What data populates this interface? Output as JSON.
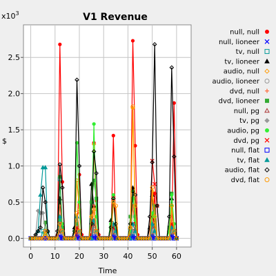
{
  "chart_data": {
    "type": "line",
    "title": "V1 Revenue",
    "xlabel": "Time",
    "ylabel": "$",
    "y_multiplier": "x10",
    "y_multiplier_exp": "3",
    "xlim": [
      -3,
      66
    ],
    "ylim": [
      -0.12,
      2.95
    ],
    "xticks": [
      0,
      10,
      20,
      30,
      40,
      50,
      60
    ],
    "yticks": [
      0.0,
      0.5,
      1.0,
      1.5,
      2.0,
      2.5
    ],
    "ytick_labels": [
      "0.0",
      "0.5",
      "1.0",
      "1.5",
      "2.0",
      "2.5"
    ],
    "grid": true,
    "legend_position": "right",
    "x": [
      0,
      1,
      2,
      3,
      4,
      5,
      6,
      7,
      8,
      9,
      10,
      11,
      12,
      13,
      14,
      15,
      16,
      17,
      18,
      19,
      20,
      21,
      22,
      23,
      24,
      25,
      26,
      27,
      28,
      29,
      30,
      31,
      32,
      33,
      34,
      35,
      36,
      37,
      38,
      39,
      40,
      41,
      42,
      43,
      44,
      45,
      46,
      47,
      48,
      49,
      50,
      51,
      52,
      53,
      54,
      55,
      56,
      57,
      58,
      59,
      60
    ],
    "series": [
      {
        "name": "null, null",
        "color": "#ff0000",
        "marker": "circle-filled",
        "values": [
          0,
          0,
          0,
          0,
          0,
          0,
          0,
          0,
          0,
          0,
          0,
          0.05,
          2.68,
          0.78,
          0,
          0,
          0,
          0,
          0,
          0.05,
          0.88,
          0.05,
          0,
          0,
          0,
          0.05,
          1.32,
          0.52,
          0.05,
          0,
          0,
          0,
          0,
          0,
          1.42,
          0.05,
          0,
          0,
          0,
          0,
          0,
          0.05,
          2.73,
          1.28,
          0.05,
          0,
          0,
          0,
          0,
          0,
          0.05,
          0.62,
          0,
          0,
          0,
          0,
          0,
          0,
          0.05,
          1.87,
          0
        ]
      },
      {
        "name": "null, lioneer",
        "color": "#0000ff",
        "marker": "x",
        "values": [
          0,
          0,
          0,
          0,
          0,
          0,
          0,
          0,
          0,
          0,
          0,
          0,
          0.03,
          0,
          0,
          0,
          0,
          0,
          0,
          0,
          0.03,
          0,
          0,
          0,
          0,
          0,
          0.02,
          0,
          0,
          0,
          0,
          0,
          0,
          0,
          0.03,
          0,
          0,
          0,
          0,
          0,
          0,
          0,
          0.03,
          0,
          0,
          0,
          0,
          0,
          0,
          0,
          0.02,
          0,
          0,
          0,
          0,
          0,
          0,
          0,
          0.03,
          0,
          0
        ]
      },
      {
        "name": "tv, null",
        "color": "#009999",
        "marker": "square-open",
        "values": [
          0,
          0,
          0,
          0,
          0,
          0.1,
          0.08,
          0,
          0,
          0,
          0,
          0,
          0.82,
          0.08,
          0,
          0,
          0,
          0,
          0,
          0.12,
          0.08,
          0,
          0,
          0,
          0,
          0,
          0.12,
          0.08,
          0,
          0,
          0,
          0,
          0,
          0,
          0.08,
          0,
          0,
          0,
          0,
          0,
          0,
          0,
          0.06,
          0,
          0,
          0,
          0,
          0,
          0,
          0,
          0.05,
          0,
          0,
          0,
          0,
          0,
          0,
          0,
          0.08,
          0,
          0
        ]
      },
      {
        "name": "tv, lioneer",
        "color": "#000000",
        "marker": "triangle-filled",
        "values": [
          0,
          0,
          0,
          0,
          0,
          0,
          0,
          0,
          0,
          0,
          0,
          0,
          0.55,
          0.1,
          0,
          0,
          0,
          0,
          0.15,
          0.3,
          0.1,
          0,
          0,
          0,
          0,
          0.75,
          0.45,
          0.1,
          0,
          0,
          0,
          0,
          0,
          0.25,
          0.15,
          0,
          0,
          0,
          0,
          0,
          0,
          0.15,
          0.7,
          0.2,
          0,
          0,
          0,
          0,
          0,
          0.15,
          0.6,
          0.1,
          0,
          0,
          0,
          0,
          0,
          0.12,
          0.55,
          0.1,
          0
        ]
      },
      {
        "name": "audio, null",
        "color": "#ff9900",
        "marker": "diamond-open",
        "values": [
          0,
          0,
          0,
          0,
          0,
          0,
          0.05,
          0,
          0,
          0,
          0,
          0,
          0.2,
          0.1,
          0,
          0,
          0,
          0,
          0,
          0.8,
          0.4,
          0,
          0,
          0,
          0,
          0.3,
          1.3,
          0.3,
          0,
          0,
          0,
          0,
          0,
          0,
          0.55,
          0.15,
          0,
          0,
          0,
          0,
          0,
          0,
          1.8,
          0.3,
          0,
          0,
          0,
          0,
          0,
          0,
          0.65,
          0.2,
          0,
          0,
          0,
          0,
          0,
          0,
          0.45,
          0.1,
          0
        ]
      },
      {
        "name": "audio, lioneer",
        "color": "#999999",
        "marker": "circle-open",
        "values": [
          0,
          0,
          0,
          0,
          0,
          0,
          0,
          0,
          0,
          0,
          0,
          0,
          0.1,
          0,
          0,
          0,
          0,
          0,
          0,
          0.1,
          0,
          0,
          0,
          0,
          0,
          0,
          0.1,
          0,
          0,
          0,
          0,
          0,
          0,
          0,
          0.1,
          0.05,
          0,
          0,
          0,
          0,
          0,
          0,
          0.1,
          0,
          0,
          0,
          0,
          0,
          0,
          0,
          0.1,
          0,
          0,
          0,
          0,
          0,
          0,
          0,
          0.1,
          0,
          0
        ]
      },
      {
        "name": "dvd, null",
        "color": "#ff6633",
        "marker": "plus",
        "values": [
          0,
          0,
          0,
          0,
          0,
          0,
          0,
          0,
          0,
          0,
          0,
          0,
          0.45,
          0.12,
          0,
          0,
          0,
          0,
          0,
          0.2,
          0.1,
          0,
          0,
          0,
          0,
          0,
          0.45,
          0.12,
          0,
          0,
          0,
          0,
          0,
          0,
          0.2,
          0.08,
          0,
          0,
          0,
          0,
          0,
          0,
          0.45,
          0.12,
          0,
          0,
          0,
          0,
          0,
          0,
          0.3,
          0.1,
          0,
          0,
          0,
          0,
          0,
          0,
          0.25,
          0.08,
          0
        ]
      },
      {
        "name": "dvd, lioneer",
        "color": "#33aa33",
        "marker": "square-filled",
        "values": [
          0,
          0,
          0,
          0,
          0,
          0,
          0.22,
          0,
          0,
          0,
          0,
          0,
          0.85,
          0.15,
          0,
          0,
          0,
          0,
          0,
          0.2,
          0.1,
          0,
          0,
          0,
          0,
          0.5,
          0.8,
          0.55,
          0,
          0,
          0,
          0,
          0,
          0.15,
          0.1,
          0,
          0,
          0,
          0,
          0,
          0,
          0.3,
          0.55,
          0.3,
          0,
          0,
          0,
          0,
          0,
          0,
          0.3,
          0.45,
          0,
          0,
          0,
          0,
          0,
          0.15,
          0.62,
          0.1,
          0
        ]
      },
      {
        "name": "null, pg",
        "color": "#aa3333",
        "marker": "triangle-open",
        "values": [
          0,
          0,
          0,
          0,
          0,
          0,
          0,
          0,
          0,
          0,
          0,
          0,
          0.1,
          0,
          0,
          0,
          0,
          0,
          0,
          0.08,
          0,
          0,
          0,
          0,
          0,
          0,
          0.1,
          0,
          0,
          0,
          0,
          0,
          0,
          0,
          0.08,
          0,
          0,
          0,
          0,
          0,
          0,
          0,
          0.1,
          0,
          0,
          0,
          0,
          0,
          0,
          0,
          0.08,
          0,
          0,
          0,
          0,
          0,
          0,
          0,
          0.08,
          0,
          0
        ]
      },
      {
        "name": "tv, pg",
        "color": "#999999",
        "marker": "diamond-filled",
        "values": [
          0,
          0,
          0.05,
          0.38,
          0.35,
          0.35,
          0.1,
          0,
          0,
          0,
          0,
          0,
          0.15,
          0.05,
          0,
          0,
          0,
          0,
          0,
          0.15,
          0.05,
          0,
          0,
          0,
          0,
          0,
          0.1,
          0.05,
          0,
          0,
          0,
          0,
          0,
          0,
          0.1,
          0.05,
          0,
          0,
          0,
          0,
          0,
          0,
          0.1,
          0,
          0,
          0,
          0,
          0,
          0,
          0,
          0.1,
          0,
          0,
          0,
          0,
          0,
          0,
          0,
          0.1,
          0,
          0
        ]
      },
      {
        "name": "audio, pg",
        "color": "#33ee33",
        "marker": "circle-filled",
        "values": [
          0,
          0,
          0,
          0,
          0,
          0,
          0,
          0,
          0,
          0,
          0,
          0,
          0.25,
          0.2,
          0,
          0,
          0,
          0,
          0.1,
          1.32,
          0.5,
          0,
          0,
          0,
          0,
          0.2,
          1.58,
          0.3,
          0,
          0,
          0,
          0,
          0,
          0.2,
          0.6,
          0.1,
          0,
          0,
          0,
          0,
          0,
          0.1,
          0.65,
          0.25,
          0,
          0,
          0,
          0,
          0,
          0,
          0.35,
          0.3,
          0,
          0,
          0,
          0,
          0,
          0.1,
          0.6,
          0.2,
          0
        ]
      },
      {
        "name": "dvd, pg",
        "color": "#ff0000",
        "marker": "x",
        "values": [
          0,
          0,
          0,
          0,
          0,
          0,
          0,
          0,
          0,
          0,
          0,
          0,
          0.2,
          0.1,
          0,
          0,
          0,
          0,
          0,
          0.15,
          0.1,
          0,
          0,
          0,
          0,
          0,
          0.2,
          0.1,
          0,
          0,
          0,
          0,
          0,
          0,
          0.15,
          0.1,
          0,
          0,
          0,
          0,
          0,
          0,
          0.2,
          0.1,
          0,
          0,
          0,
          0,
          0,
          0,
          1.07,
          0.75,
          0.45,
          0,
          0,
          0,
          0,
          0,
          0.2,
          0.1,
          0
        ]
      },
      {
        "name": "null, flat",
        "color": "#0000ff",
        "marker": "square-open",
        "values": [
          0,
          0,
          0,
          0,
          0,
          0,
          0,
          0,
          0,
          0,
          0,
          0,
          0.02,
          0,
          0,
          0,
          0,
          0,
          0,
          0.02,
          0,
          0,
          0,
          0,
          0,
          0,
          0.02,
          0,
          0,
          0,
          0,
          0,
          0,
          0,
          0.02,
          0,
          0,
          0,
          0,
          0,
          0,
          0,
          0.02,
          0,
          0,
          0,
          0,
          0,
          0,
          0,
          0.02,
          0,
          0,
          0,
          0,
          0,
          0,
          0,
          0.02,
          0,
          0
        ]
      },
      {
        "name": "tv, flat",
        "color": "#009999",
        "marker": "triangle-filled",
        "values": [
          0,
          0,
          0,
          0.1,
          0.6,
          0.98,
          0.98,
          0.1,
          0,
          0,
          0,
          0,
          0.3,
          0.1,
          0,
          0,
          0,
          0,
          0,
          0.3,
          0.1,
          0,
          0,
          0,
          0,
          0,
          0.25,
          0.1,
          0,
          0,
          0,
          0,
          0,
          0,
          0.2,
          0.1,
          0,
          0,
          0,
          0,
          0,
          0,
          0.2,
          0.1,
          0,
          0,
          0,
          0,
          0,
          0,
          0.2,
          0.1,
          0,
          0,
          0,
          0,
          0,
          0,
          0.15,
          0.1,
          0
        ]
      },
      {
        "name": "audio, flat",
        "color": "#000000",
        "marker": "diamond-open",
        "values": [
          0,
          0,
          0.05,
          0.1,
          0.15,
          0.7,
          0.5,
          0.1,
          0,
          0,
          0,
          0.1,
          1.02,
          0.7,
          0,
          0,
          0,
          0,
          0.1,
          2.19,
          1.0,
          0,
          0,
          0,
          0,
          0.2,
          1.2,
          0.9,
          0,
          0,
          0,
          0,
          0,
          0.15,
          0.55,
          0.2,
          0,
          0,
          0,
          0,
          0,
          0.2,
          0.65,
          0.6,
          0,
          0,
          0,
          0,
          0,
          0.3,
          1.05,
          2.68,
          0.45,
          0,
          0,
          0,
          0,
          0.3,
          2.36,
          1.13,
          0
        ]
      },
      {
        "name": "dvd, flat",
        "color": "#ff9900",
        "marker": "circle-open",
        "values": [
          0,
          0,
          0,
          0,
          0,
          0,
          0.1,
          0,
          0,
          0,
          0,
          0,
          0.2,
          0.1,
          0,
          0,
          0,
          0,
          0,
          0.35,
          0.1,
          0,
          0,
          0,
          0,
          0.3,
          0.4,
          0.1,
          0,
          0,
          0,
          0,
          0,
          0,
          0.5,
          0.45,
          0,
          0,
          0,
          0,
          0,
          0.15,
          1.82,
          0.45,
          0,
          0,
          0,
          0,
          0,
          0,
          0.7,
          0.3,
          0,
          0,
          0,
          0,
          0,
          0,
          0.45,
          0.1,
          0
        ]
      }
    ]
  }
}
